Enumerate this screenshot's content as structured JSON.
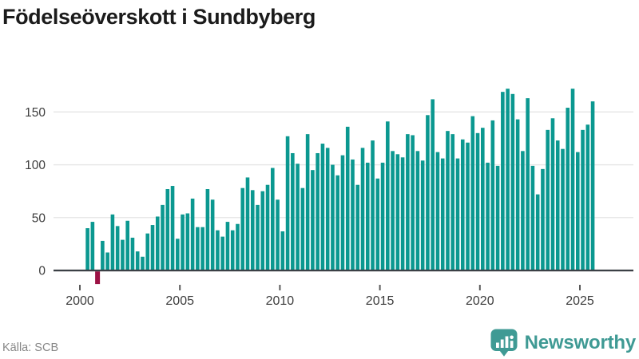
{
  "header": {
    "title": "Födelseöverskott i Sundbyberg"
  },
  "footer": {
    "source": "Källa: SCB"
  },
  "brand": {
    "name": "Newsworthy",
    "icon": "bar-chart-pin-icon"
  },
  "colors": {
    "bar": "#0b9890",
    "negative_bar": "#9c1244",
    "grid": "#e5e5e5",
    "axis": "#3b4045",
    "tick_label": "#3d3d3d",
    "title": "#1b1b1b",
    "source_text": "#878787",
    "brand_teal": "#3f9a94",
    "background": "#ffffff"
  },
  "chart_data": {
    "type": "bar",
    "title": "Födelseöverskott i Sundbyberg",
    "source": "Källa: SCB",
    "frequency": "quarterly",
    "x_start": "2000-Q2",
    "x_end": "2025-Q3",
    "x_tick_labels": [
      "2000",
      "2005",
      "2010",
      "2015",
      "2020",
      "2025"
    ],
    "y_tick_labels": [
      "0",
      "50",
      "100",
      "150"
    ],
    "y_tick_values": [
      0,
      50,
      100,
      150
    ],
    "ylim": [
      -25,
      185
    ],
    "grid": true,
    "legend": "none",
    "negative_values_highlighted": true,
    "values": [
      40,
      46,
      -12,
      28,
      17,
      53,
      42,
      29,
      47,
      31,
      18,
      13,
      35,
      43,
      51,
      62,
      77,
      80,
      30,
      53,
      54,
      68,
      41,
      41,
      77,
      67,
      38,
      32,
      46,
      38,
      44,
      78,
      88,
      76,
      62,
      75,
      81,
      97,
      67,
      37,
      127,
      111,
      101,
      78,
      129,
      95,
      111,
      120,
      116,
      100,
      90,
      109,
      136,
      105,
      81,
      116,
      102,
      123,
      87,
      102,
      141,
      113,
      110,
      107,
      129,
      128,
      113,
      104,
      147,
      162,
      112,
      106,
      132,
      129,
      106,
      124,
      121,
      146,
      130,
      135,
      102,
      142,
      99,
      169,
      172,
      167,
      143,
      113,
      163,
      99,
      72,
      96,
      133,
      144,
      123,
      115,
      154,
      172,
      112,
      133,
      138,
      160
    ]
  }
}
